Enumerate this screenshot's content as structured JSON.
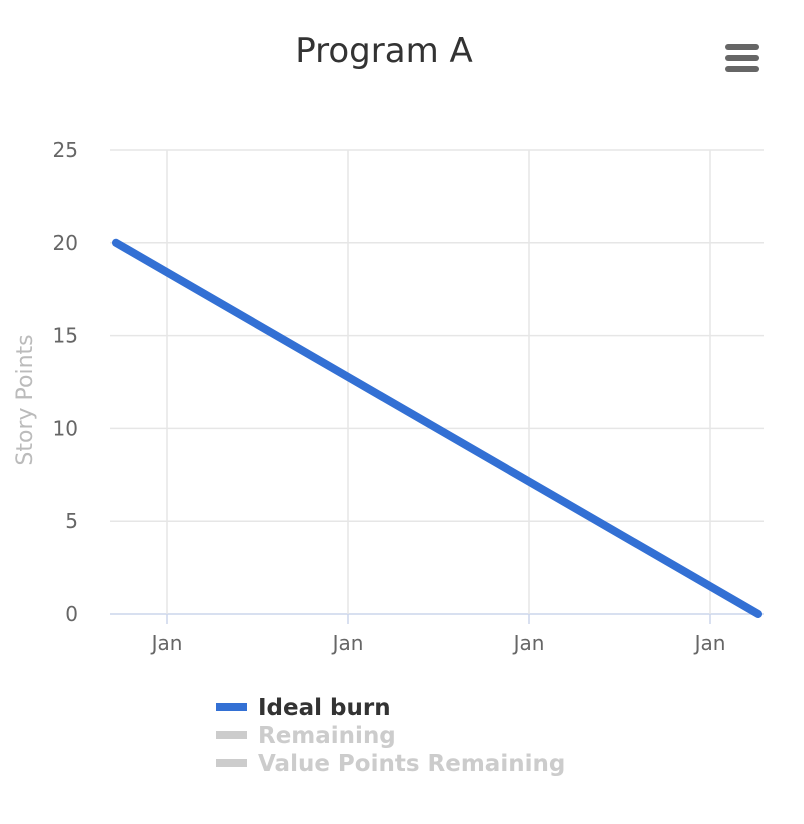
{
  "chart_data": {
    "type": "line",
    "title": "Program A",
    "xlabel": "",
    "ylabel": "Story Points",
    "ylim": [
      0,
      25
    ],
    "yticks": [
      "0",
      "5",
      "10",
      "15",
      "20",
      "25"
    ],
    "xticks": [
      "Jan",
      "Jan",
      "Jan",
      "Jan"
    ],
    "grid": true,
    "series": [
      {
        "name": "Ideal burn",
        "color": "#3370D4",
        "visible": true,
        "points": [
          {
            "x": 0,
            "y": 20
          },
          {
            "x": 1,
            "y": 0
          }
        ]
      },
      {
        "name": "Remaining",
        "color": "#CCCCCC",
        "visible": false,
        "points": []
      },
      {
        "name": "Value Points Remaining",
        "color": "#CCCCCC",
        "visible": false,
        "points": []
      }
    ],
    "legend_position": "bottom"
  },
  "menu": {
    "icon": "hamburger-menu-icon"
  }
}
